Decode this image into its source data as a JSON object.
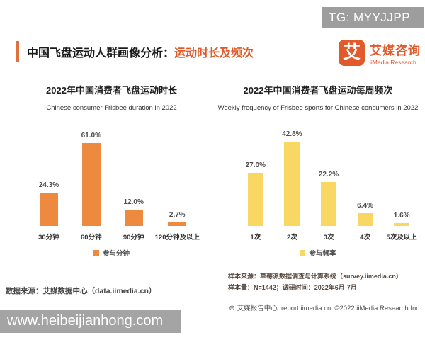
{
  "watermarks": {
    "top_right": "TG: MYYJJPP",
    "bottom_left": "www.heibeijianhong.com"
  },
  "header": {
    "title_black": "中国飞盘运动人群画像分析：",
    "title_orange": "运动时长及频次",
    "logo": {
      "icon_char": "艾",
      "name_cn": "艾媒咨询",
      "name_en": "iiMedia Research"
    }
  },
  "colors": {
    "accent_orange": "#DE5A28",
    "bar_orange": "#ED8A40",
    "bar_yellow": "#F8D863",
    "watermark_gray": "#9D9D9D"
  },
  "chart_data": [
    {
      "type": "bar",
      "title": "2022年中国消费者飞盘运动时长",
      "subtitle": "Chinese consumer Frisbee duration in 2022",
      "categories": [
        "30分钟",
        "60分钟",
        "90分钟",
        "120分钟及以上"
      ],
      "values": [
        24.3,
        61.0,
        12.0,
        2.7
      ],
      "value_labels": [
        "24.3%",
        "61.0%",
        "12.0%",
        "2.7%"
      ],
      "legend": "参与分钟",
      "bar_color": "#ED8A40",
      "ylabel": "",
      "xlabel": "",
      "ylim": [
        0,
        65
      ],
      "grid": false,
      "legend_position": "bottom"
    },
    {
      "type": "bar",
      "title": "2022年中国消费者飞盘运动每周频次",
      "subtitle": "Weekly frequency of Frisbee sports for Chinese consumers in 2022",
      "categories": [
        "1次",
        "2次",
        "3次",
        "4次",
        "5次及以上"
      ],
      "values": [
        27.0,
        42.8,
        22.2,
        6.4,
        1.6
      ],
      "value_labels": [
        "27.0%",
        "42.8%",
        "22.2%",
        "6.4%",
        "1.6%"
      ],
      "legend": "参与频率",
      "bar_color": "#F8D863",
      "ylabel": "",
      "xlabel": "",
      "ylim": [
        0,
        45
      ],
      "grid": false,
      "legend_position": "bottom"
    }
  ],
  "footnotes": {
    "right_line1": "样本来源：草莓派数据调查与计算系统（survey.iimedia.cn）",
    "right_line2": "样本量：N=1442；调研时间：2022年6月-7月",
    "left_line": "数据来源：艾媒数据中心（data.iimedia.cn）"
  },
  "footer_bar": {
    "globe_icon": "⊕",
    "text": "艾媒报告中心: report.iimedia.cn",
    "copyright": "©2022 iiMedia Research Inc"
  }
}
